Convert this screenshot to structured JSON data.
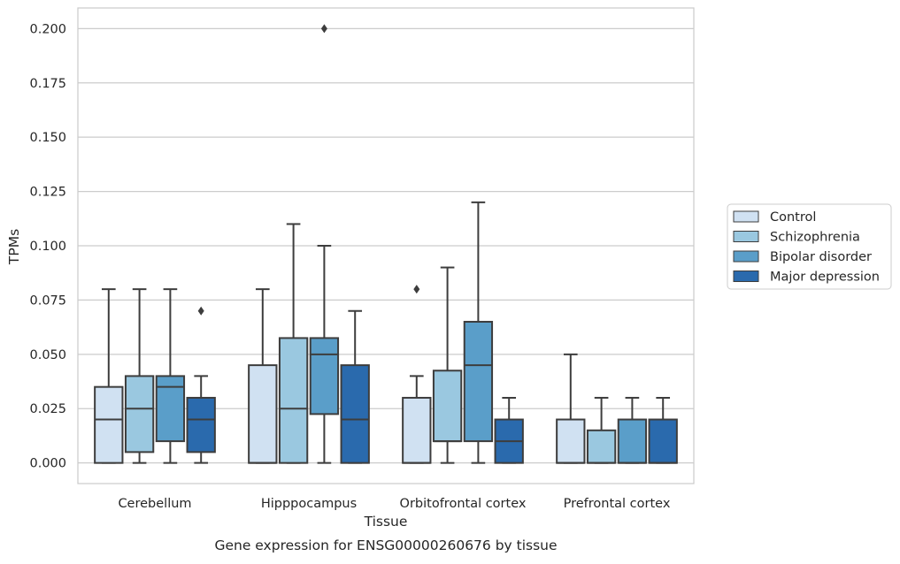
{
  "chart_data": {
    "type": "box",
    "title": "",
    "caption": "Gene expression for ENSG00000260676 by tissue",
    "xlabel": "Tissue",
    "ylabel": "TPMs",
    "ylim": [
      -0.0095,
      0.2095
    ],
    "yticks": [
      0.0,
      0.025,
      0.05,
      0.075,
      0.1,
      0.125,
      0.15,
      0.175,
      0.2
    ],
    "ytick_labels": [
      "0.000",
      "0.025",
      "0.050",
      "0.075",
      "0.100",
      "0.125",
      "0.150",
      "0.175",
      "0.200"
    ],
    "grid": "horizontal",
    "legend_position": "right",
    "categories": [
      "Cerebellum",
      "Hipppocampus",
      "Orbitofrontal cortex",
      "Prefrontal cortex"
    ],
    "series": [
      {
        "name": "Control",
        "color": "#d0e1f2",
        "boxes": [
          {
            "whislo": 0.0,
            "q1": 0.0,
            "med": 0.02,
            "q3": 0.035,
            "whishi": 0.08,
            "fliers": []
          },
          {
            "whislo": 0.0,
            "q1": 0.0,
            "med": 0.0,
            "q3": 0.045,
            "whishi": 0.08,
            "fliers": []
          },
          {
            "whislo": 0.0,
            "q1": 0.0,
            "med": 0.0,
            "q3": 0.03,
            "whishi": 0.04,
            "fliers": [
              0.08
            ]
          },
          {
            "whislo": 0.0,
            "q1": 0.0,
            "med": 0.0,
            "q3": 0.02,
            "whishi": 0.05,
            "fliers": []
          }
        ]
      },
      {
        "name": "Schizophrenia",
        "color": "#9ac8e0",
        "boxes": [
          {
            "whislo": 0.0,
            "q1": 0.005,
            "med": 0.025,
            "q3": 0.04,
            "whishi": 0.08,
            "fliers": []
          },
          {
            "whislo": 0.0,
            "q1": 0.0,
            "med": 0.025,
            "q3": 0.0575,
            "whishi": 0.11,
            "fliers": []
          },
          {
            "whislo": 0.0,
            "q1": 0.01,
            "med": 0.01,
            "q3": 0.0425,
            "whishi": 0.09,
            "fliers": []
          },
          {
            "whislo": 0.0,
            "q1": 0.0,
            "med": 0.0,
            "q3": 0.015,
            "whishi": 0.03,
            "fliers": []
          }
        ]
      },
      {
        "name": "Bipolar disorder",
        "color": "#5a9ec9",
        "boxes": [
          {
            "whislo": 0.0,
            "q1": 0.01,
            "med": 0.035,
            "q3": 0.04,
            "whishi": 0.08,
            "fliers": []
          },
          {
            "whislo": 0.0,
            "q1": 0.0225,
            "med": 0.05,
            "q3": 0.0575,
            "whishi": 0.1,
            "fliers": [
              0.2
            ]
          },
          {
            "whislo": 0.0,
            "q1": 0.01,
            "med": 0.045,
            "q3": 0.065,
            "whishi": 0.12,
            "fliers": []
          },
          {
            "whislo": 0.0,
            "q1": 0.0,
            "med": 0.0,
            "q3": 0.02,
            "whishi": 0.03,
            "fliers": []
          }
        ]
      },
      {
        "name": "Major depression",
        "color": "#2a6aad",
        "boxes": [
          {
            "whislo": 0.0,
            "q1": 0.005,
            "med": 0.02,
            "q3": 0.03,
            "whishi": 0.04,
            "fliers": [
              0.07
            ]
          },
          {
            "whislo": 0.0,
            "q1": 0.0,
            "med": 0.02,
            "q3": 0.045,
            "whishi": 0.07,
            "fliers": []
          },
          {
            "whislo": 0.0,
            "q1": 0.0,
            "med": 0.01,
            "q3": 0.02,
            "whishi": 0.03,
            "fliers": []
          },
          {
            "whislo": 0.0,
            "q1": 0.0,
            "med": 0.0,
            "q3": 0.02,
            "whishi": 0.03,
            "fliers": []
          }
        ]
      }
    ]
  }
}
